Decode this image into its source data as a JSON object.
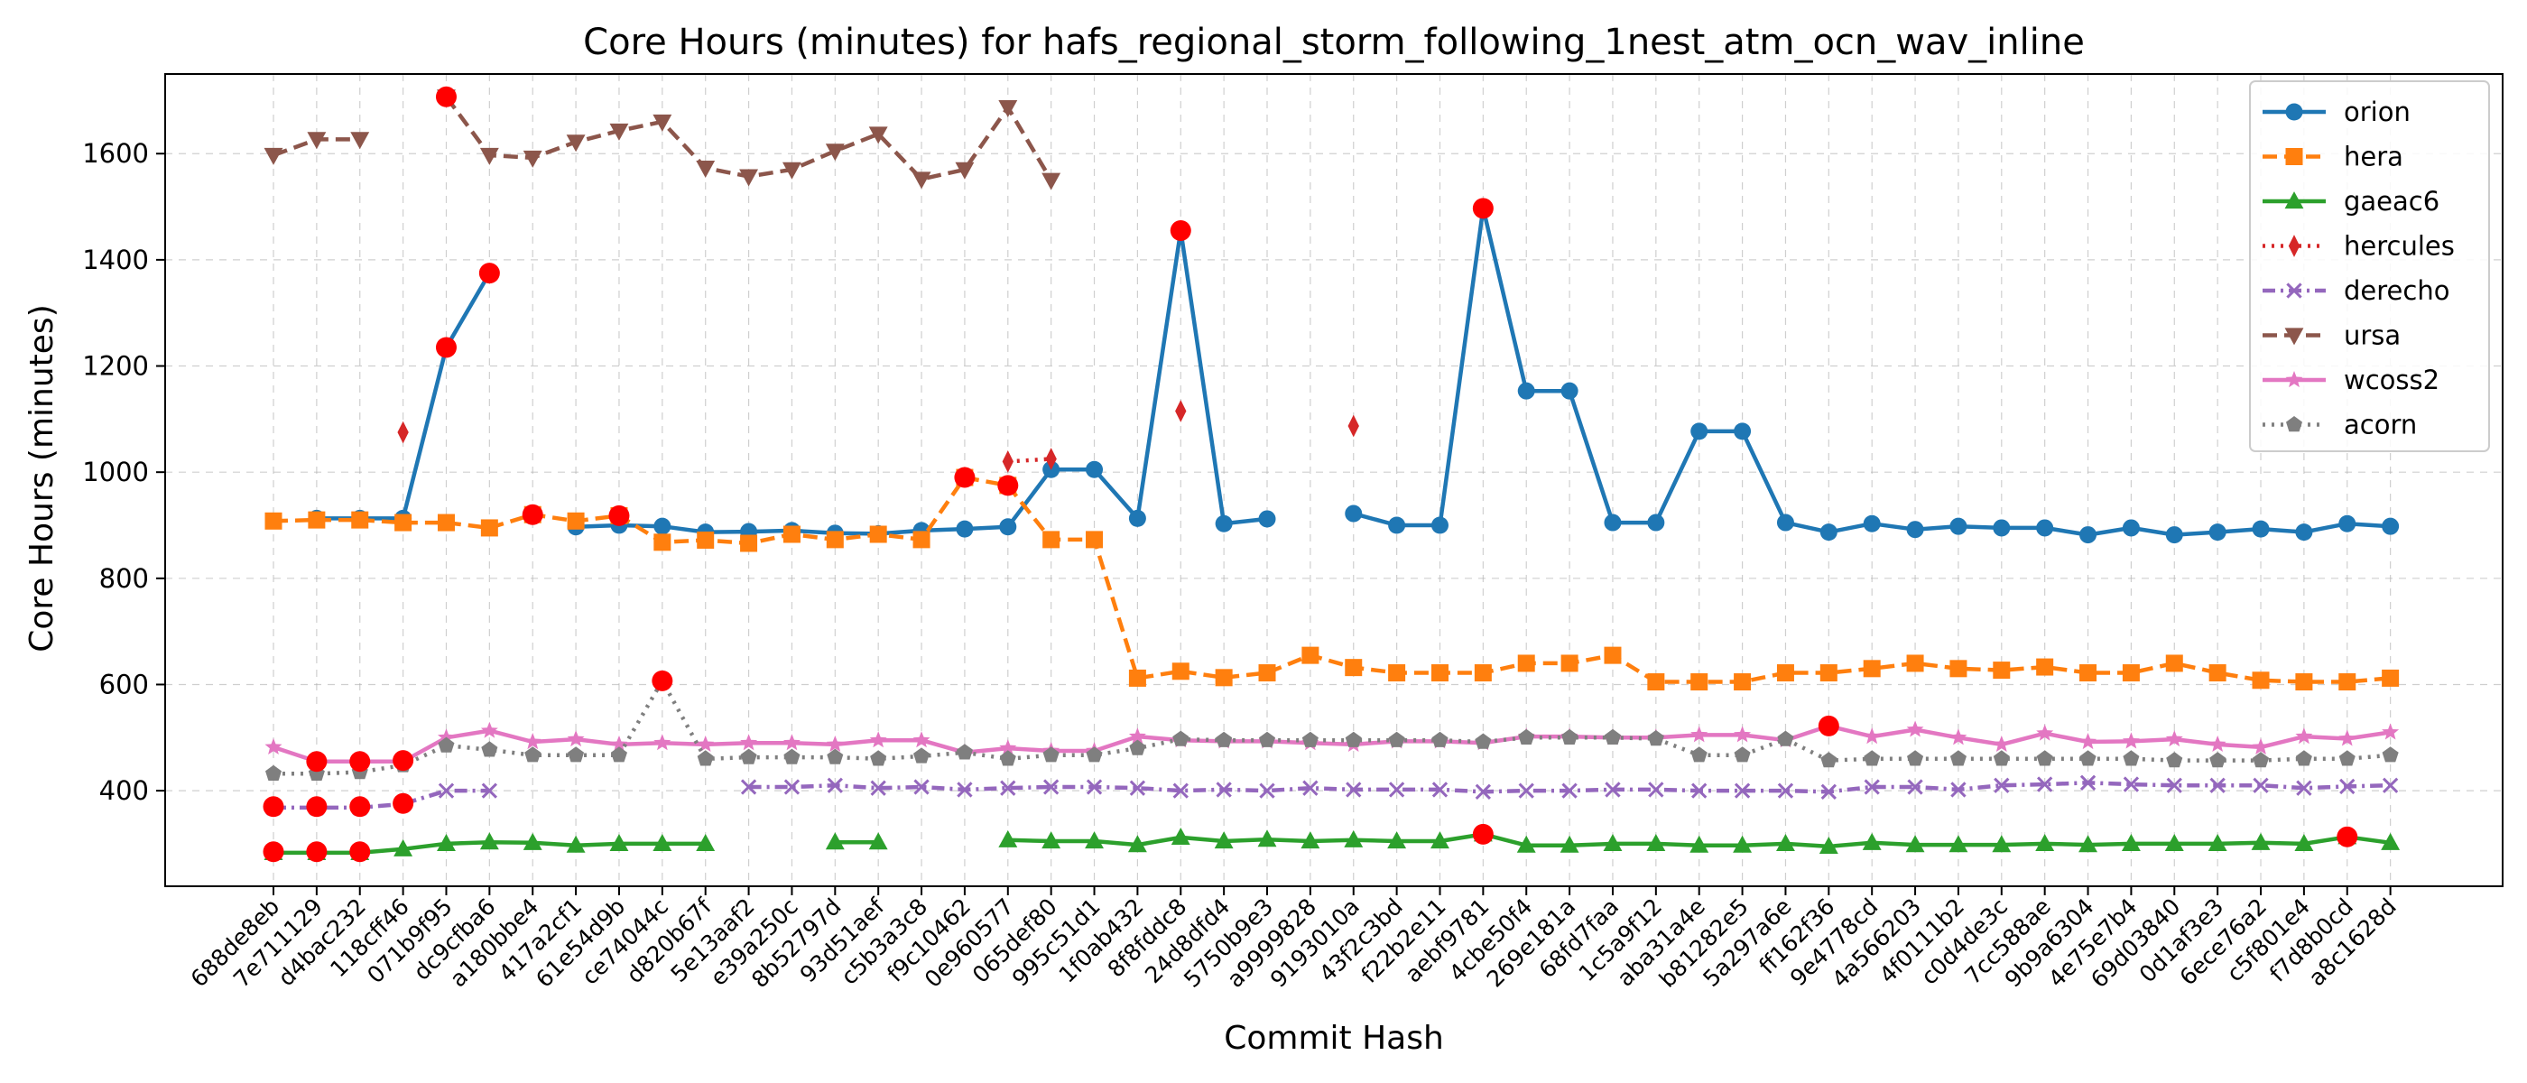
{
  "chart_data": {
    "type": "line",
    "title": "Core Hours (minutes) for hafs_regional_storm_following_1nest_atm_ocn_wav_inline",
    "xlabel": "Commit Hash",
    "ylabel": "Core Hours (minutes)",
    "ylim": [
      220,
      1750
    ],
    "yticks": [
      400,
      600,
      800,
      1000,
      1200,
      1400,
      1600
    ],
    "grid": true,
    "legend_position": "top-right",
    "categories": [
      "688de8eb",
      "7e711129",
      "d4bac232",
      "118cff46",
      "071b9f95",
      "dc9cfba6",
      "a180bbe4",
      "417a2cf1",
      "61e54d9b",
      "ce74044c",
      "d820b67f",
      "5e13aaf2",
      "e39a250c",
      "8b52797d",
      "93d51aef",
      "c5b3a3c8",
      "f9c10462",
      "0e960577",
      "065def80",
      "995c51d1",
      "1f0ab432",
      "8f8fddc8",
      "24d8dfd4",
      "5750b9e3",
      "a9999828",
      "9193010a",
      "43f2c3bd",
      "f22b2e11",
      "aebf9781",
      "4cbe50f4",
      "269e181a",
      "68fd7faa",
      "1c5a9f12",
      "aba31a4e",
      "b81282e5",
      "5a297a6e",
      "ff162f36",
      "9e4778cd",
      "4a566203",
      "4f0111b2",
      "c0d4de3c",
      "7cc588ae",
      "9b9a6304",
      "4e75e7b4",
      "69d03840",
      "0d1af3e3",
      "6ece76a2",
      "c5f801e4",
      "f7d8b0cd",
      "a8c1628d"
    ],
    "series": [
      {
        "name": "orion",
        "color": "#1f77b4",
        "marker": "circle",
        "dash": "solid",
        "values": [
          null,
          913,
          913,
          913,
          1235,
          1375,
          null,
          897,
          900,
          898,
          887,
          888,
          890,
          885,
          884,
          890,
          893,
          897,
          1005,
          1005,
          913,
          1455,
          903,
          912,
          null,
          922,
          900,
          900,
          1497,
          1153,
          1153,
          905,
          905,
          1077,
          1077,
          905,
          887,
          903,
          892,
          898,
          895,
          895,
          882,
          895,
          882,
          887,
          893,
          887,
          903,
          898
        ]
      },
      {
        "name": "hera",
        "color": "#ff7f0e",
        "marker": "square",
        "dash": "dashed",
        "values": [
          908,
          910,
          910,
          905,
          905,
          895,
          920,
          908,
          918,
          868,
          872,
          866,
          883,
          873,
          883,
          873,
          990,
          975,
          873,
          873,
          612,
          625,
          613,
          622,
          655,
          632,
          622,
          622,
          622,
          640,
          640,
          655,
          605,
          605,
          605,
          622,
          622,
          630,
          640,
          630,
          627,
          633,
          622,
          622,
          640,
          622,
          608,
          605,
          605,
          612
        ]
      },
      {
        "name": "gaeac6",
        "color": "#2ca02c",
        "marker": "triangle-up",
        "dash": "solid",
        "values": [
          283,
          283,
          283,
          290,
          300,
          303,
          302,
          297,
          300,
          300,
          300,
          null,
          null,
          303,
          303,
          null,
          null,
          307,
          305,
          305,
          298,
          312,
          305,
          308,
          305,
          307,
          305,
          305,
          318,
          297,
          297,
          300,
          300,
          297,
          297,
          300,
          295,
          302,
          298,
          298,
          298,
          300,
          298,
          300,
          300,
          300,
          302,
          300,
          313,
          302
        ]
      },
      {
        "name": "hercules",
        "color": "#d62728",
        "marker": "diamond",
        "dash": "dotted",
        "values": [
          null,
          null,
          null,
          1075,
          null,
          null,
          null,
          null,
          null,
          null,
          null,
          null,
          null,
          null,
          null,
          null,
          null,
          1020,
          1025,
          null,
          null,
          1115,
          null,
          null,
          null,
          1087,
          null,
          null,
          null,
          null,
          null,
          null,
          null,
          null,
          null,
          null,
          null,
          null,
          null,
          null,
          null,
          null,
          null,
          null,
          null,
          null,
          null,
          null,
          null,
          null
        ]
      },
      {
        "name": "derecho",
        "color": "#9467bd",
        "marker": "x",
        "dash": "dashdot",
        "values": [
          368,
          368,
          368,
          375,
          400,
          400,
          null,
          null,
          null,
          null,
          null,
          407,
          407,
          410,
          405,
          407,
          402,
          405,
          407,
          407,
          405,
          400,
          402,
          400,
          405,
          402,
          402,
          402,
          398,
          400,
          400,
          402,
          402,
          400,
          400,
          400,
          398,
          407,
          407,
          402,
          410,
          412,
          415,
          412,
          410,
          410,
          410,
          405,
          408,
          410
        ]
      },
      {
        "name": "ursa",
        "color": "#8c564b",
        "marker": "triangle-down",
        "dash": "dashed",
        "values": [
          1597,
          1627,
          1627,
          null,
          1707,
          1597,
          1592,
          1622,
          1643,
          1660,
          1573,
          1557,
          1570,
          1605,
          1637,
          1552,
          1570,
          1687,
          1550,
          null,
          null,
          null,
          null,
          null,
          null,
          null,
          null,
          null,
          null,
          null,
          null,
          null,
          null,
          null,
          null,
          null,
          null,
          null,
          null,
          null,
          null,
          null,
          null,
          null,
          null,
          null,
          null,
          null,
          null,
          null
        ]
      },
      {
        "name": "wcoss2",
        "color": "#e377c2",
        "marker": "star",
        "dash": "solid",
        "values": [
          482,
          455,
          455,
          455,
          500,
          513,
          492,
          497,
          487,
          490,
          487,
          490,
          490,
          487,
          495,
          495,
          472,
          480,
          475,
          475,
          502,
          495,
          493,
          493,
          490,
          487,
          493,
          493,
          490,
          502,
          502,
          500,
          500,
          505,
          505,
          495,
          522,
          502,
          515,
          500,
          487,
          508,
          492,
          493,
          497,
          487,
          482,
          502,
          498,
          510
        ]
      },
      {
        "name": "acorn",
        "color": "#7f7f7f",
        "marker": "pentagon",
        "dash": "dotted",
        "values": [
          432,
          432,
          435,
          448,
          485,
          477,
          467,
          467,
          467,
          607,
          460,
          463,
          463,
          463,
          460,
          465,
          472,
          460,
          467,
          467,
          480,
          497,
          495,
          495,
          495,
          495,
          495,
          495,
          492,
          500,
          500,
          500,
          498,
          467,
          467,
          497,
          457,
          460,
          460,
          460,
          460,
          460,
          460,
          460,
          457,
          457,
          457,
          460,
          460,
          467
        ]
      }
    ],
    "highlight_points": [
      [
        0,
        370
      ],
      [
        1,
        370
      ],
      [
        2,
        370
      ],
      [
        3,
        376
      ],
      [
        0,
        285
      ],
      [
        1,
        285
      ],
      [
        2,
        285
      ],
      [
        1,
        455
      ],
      [
        2,
        455
      ],
      [
        3,
        457
      ],
      [
        4,
        1235
      ],
      [
        5,
        1375
      ],
      [
        4,
        1707
      ],
      [
        6,
        920
      ],
      [
        8,
        918
      ],
      [
        9,
        607
      ],
      [
        16,
        990
      ],
      [
        17,
        975
      ],
      [
        21,
        1455
      ],
      [
        28,
        1497
      ],
      [
        28,
        318
      ],
      [
        36,
        522
      ],
      [
        48,
        313
      ]
    ]
  }
}
